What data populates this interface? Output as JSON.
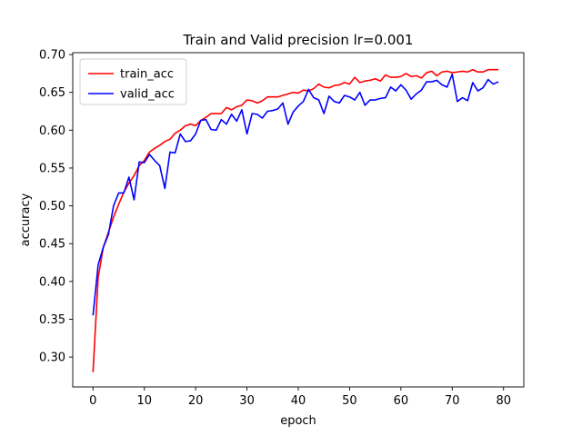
{
  "chart_data": {
    "type": "line",
    "title": "Train and Valid precision  lr=0.001",
    "xlabel": "epoch",
    "ylabel": "accuracy",
    "xlim": [
      -3.95,
      83.95
    ],
    "ylim": [
      0.2605,
      0.7025
    ],
    "x_ticks": [
      0,
      10,
      20,
      30,
      40,
      50,
      60,
      70,
      80
    ],
    "y_ticks": [
      0.3,
      0.35,
      0.4,
      0.45,
      0.5,
      0.55,
      0.6,
      0.65,
      0.7
    ],
    "x_tick_labels": [
      "0",
      "10",
      "20",
      "30",
      "40",
      "50",
      "60",
      "70",
      "80"
    ],
    "y_tick_labels": [
      "0.30",
      "0.35",
      "0.40",
      "0.45",
      "0.50",
      "0.55",
      "0.60",
      "0.65",
      "0.70"
    ],
    "grid": false,
    "legend_position": "upper-left",
    "series": [
      {
        "name": "train_acc",
        "color": "#ff0000",
        "x": [
          0,
          1,
          2,
          3,
          4,
          5,
          6,
          7,
          8,
          9,
          10,
          11,
          12,
          13,
          14,
          15,
          16,
          17,
          18,
          19,
          20,
          21,
          22,
          23,
          24,
          25,
          26,
          27,
          28,
          29,
          30,
          31,
          32,
          33,
          34,
          35,
          36,
          37,
          38,
          39,
          40,
          41,
          42,
          43,
          44,
          45,
          46,
          47,
          48,
          49,
          50,
          51,
          52,
          53,
          54,
          55,
          56,
          57,
          58,
          59,
          60,
          61,
          62,
          63,
          64,
          65,
          66,
          67,
          68,
          69,
          70,
          71,
          72,
          73,
          74,
          75,
          76,
          77,
          78,
          79
        ],
        "y": [
          0.28,
          0.405,
          0.445,
          0.465,
          0.485,
          0.502,
          0.518,
          0.53,
          0.54,
          0.553,
          0.56,
          0.571,
          0.576,
          0.58,
          0.585,
          0.588,
          0.596,
          0.6,
          0.606,
          0.608,
          0.606,
          0.613,
          0.617,
          0.622,
          0.622,
          0.622,
          0.63,
          0.627,
          0.631,
          0.633,
          0.64,
          0.639,
          0.636,
          0.639,
          0.644,
          0.644,
          0.644,
          0.646,
          0.648,
          0.65,
          0.649,
          0.653,
          0.652,
          0.655,
          0.661,
          0.657,
          0.656,
          0.659,
          0.66,
          0.663,
          0.661,
          0.67,
          0.663,
          0.665,
          0.666,
          0.668,
          0.665,
          0.673,
          0.67,
          0.67,
          0.671,
          0.675,
          0.671,
          0.672,
          0.669,
          0.676,
          0.678,
          0.672,
          0.677,
          0.678,
          0.676,
          0.677,
          0.678,
          0.677,
          0.68,
          0.677,
          0.677,
          0.68,
          0.68,
          0.68
        ]
      },
      {
        "name": "valid_acc",
        "color": "#0000ff",
        "x": [
          0,
          1,
          2,
          3,
          4,
          5,
          6,
          7,
          8,
          9,
          10,
          11,
          12,
          13,
          14,
          15,
          16,
          17,
          18,
          19,
          20,
          21,
          22,
          23,
          24,
          25,
          26,
          27,
          28,
          29,
          30,
          31,
          32,
          33,
          34,
          35,
          36,
          37,
          38,
          39,
          40,
          41,
          42,
          43,
          44,
          45,
          46,
          47,
          48,
          49,
          50,
          51,
          52,
          53,
          54,
          55,
          56,
          57,
          58,
          59,
          60,
          61,
          62,
          63,
          64,
          65,
          66,
          67,
          68,
          69,
          70,
          71,
          72,
          73,
          74,
          75,
          76,
          77,
          78,
          79
        ],
        "y": [
          0.355,
          0.422,
          0.445,
          0.462,
          0.5,
          0.517,
          0.517,
          0.538,
          0.508,
          0.558,
          0.557,
          0.568,
          0.56,
          0.553,
          0.523,
          0.571,
          0.57,
          0.595,
          0.585,
          0.586,
          0.595,
          0.613,
          0.614,
          0.601,
          0.6,
          0.614,
          0.608,
          0.621,
          0.612,
          0.627,
          0.595,
          0.622,
          0.621,
          0.616,
          0.625,
          0.626,
          0.628,
          0.636,
          0.608,
          0.624,
          0.632,
          0.638,
          0.654,
          0.643,
          0.64,
          0.622,
          0.645,
          0.638,
          0.636,
          0.646,
          0.644,
          0.64,
          0.65,
          0.633,
          0.64,
          0.64,
          0.642,
          0.643,
          0.657,
          0.652,
          0.66,
          0.653,
          0.641,
          0.648,
          0.653,
          0.664,
          0.664,
          0.666,
          0.66,
          0.657,
          0.674,
          0.638,
          0.643,
          0.639,
          0.663,
          0.652,
          0.656,
          0.667,
          0.661,
          0.664
        ]
      }
    ]
  }
}
